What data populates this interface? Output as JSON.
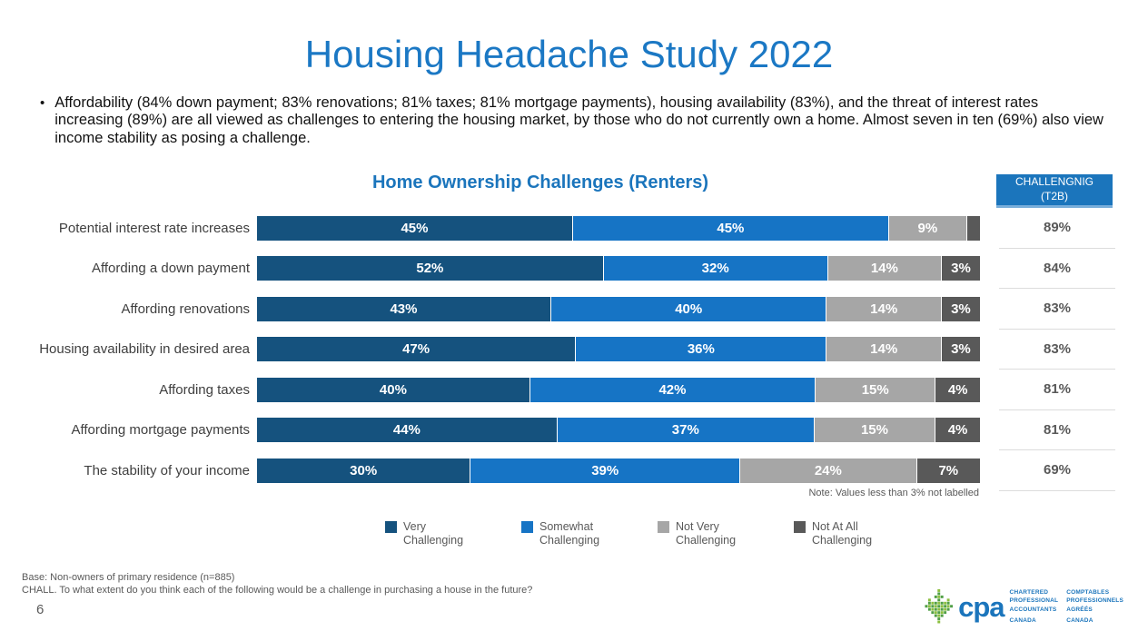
{
  "header": {
    "title": "Housing Headache Study 2022",
    "bullet": "Affordability (84% down payment; 83% renovations; 81% taxes; 81% mortgage payments), housing availability (83%), and the threat of interest rates increasing (89%) are all viewed as challenges to entering the housing market, by those who do not currently own a home. Almost seven in ten (69%) also view income stability as posing a challenge."
  },
  "chart_data": {
    "type": "bar",
    "variant": "horizontal-stacked",
    "title": "Home Ownership Challenges (Renters)",
    "xlim": [
      0,
      100
    ],
    "unit": "%",
    "legend_position": "bottom",
    "categories": [
      "Potential interest rate increases",
      "Affording a down payment",
      "Affording renovations",
      "Housing availability in desired area",
      "Affording taxes",
      "Affording mortgage payments",
      "The stability of your income"
    ],
    "series": [
      {
        "name": "Very Challenging",
        "color": "#15527E",
        "values": [
          45,
          52,
          43,
          47,
          40,
          44,
          30
        ]
      },
      {
        "name": "Somewhat Challenging",
        "color": "#1674C5",
        "values": [
          45,
          32,
          40,
          36,
          42,
          37,
          39
        ]
      },
      {
        "name": "Not Very Challenging",
        "color": "#A6A6A6",
        "values": [
          9,
          14,
          14,
          14,
          15,
          15,
          24
        ]
      },
      {
        "name": "Not At All Challenging",
        "color": "#595959",
        "values": [
          2,
          3,
          3,
          3,
          4,
          4,
          7
        ]
      }
    ],
    "segment_labels": [
      [
        "45%",
        "45%",
        "9%",
        ""
      ],
      [
        "52%",
        "32%",
        "14%",
        "3%"
      ],
      [
        "43%",
        "40%",
        "14%",
        "3%"
      ],
      [
        "47%",
        "36%",
        "14%",
        "3%"
      ],
      [
        "40%",
        "42%",
        "15%",
        "4%"
      ],
      [
        "44%",
        "37%",
        "15%",
        "4%"
      ],
      [
        "30%",
        "39%",
        "24%",
        "7%"
      ]
    ],
    "t2b": {
      "header_line1": "CHALLENGNIG",
      "header_line2": "(T2B)",
      "values": [
        "89%",
        "84%",
        "83%",
        "83%",
        "81%",
        "81%",
        "69%"
      ]
    },
    "note": "Note: Values less than 3% not labelled"
  },
  "footer": {
    "base": "Base: Non-owners of primary residence (n=885)",
    "question": "CHALL. To what extent do you think each of the following would be a challenge in purchasing a house in the future?",
    "page_number": "6"
  },
  "logo": {
    "cpa": "cpa",
    "en": [
      "Chartered",
      "Professional",
      "Accountants",
      "Canada"
    ],
    "fr": [
      "Comptables",
      "Professionnels",
      "Agréés",
      "Canada"
    ]
  },
  "colors": {
    "accent_blue": "#1B75BC",
    "title_blue": "#1B78C4",
    "t2b_text": "#595959",
    "separator": "#DCDCDC",
    "leaf_green_dark": "#4F9E45",
    "leaf_green_light": "#8CBF3F"
  }
}
